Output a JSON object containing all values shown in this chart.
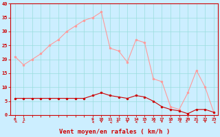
{
  "x_labels": [
    "0",
    "1",
    "",
    "",
    "",
    "",
    "",
    "",
    "",
    "9",
    "10",
    "11",
    "12",
    "13",
    "14",
    "15",
    "16",
    "17",
    "18",
    "19",
    "20",
    "21",
    "22",
    "23"
  ],
  "wind_mean": [
    6,
    6,
    6,
    6,
    6,
    6,
    6,
    6,
    6,
    7,
    8,
    7,
    6.5,
    6,
    7,
    6.5,
    5,
    3,
    2,
    1.5,
    0.5,
    2,
    2,
    1
  ],
  "wind_gust": [
    21,
    18,
    20,
    22,
    25,
    27,
    30,
    32,
    34,
    35,
    37,
    24,
    23,
    19,
    27,
    26,
    13,
    12,
    3,
    2,
    8,
    16,
    10,
    1
  ],
  "bg_color": "#cceeff",
  "grid_color": "#99dddd",
  "line_mean_color": "#cc0000",
  "line_gust_color": "#ff9999",
  "marker_color_mean": "#cc0000",
  "marker_color_gust": "#ff9999",
  "xlabel": "Vent moyen/en rafales ( km/h )",
  "xlabel_color": "#cc0000",
  "tick_color": "#cc0000",
  "ylim": [
    0,
    40
  ],
  "yticks": [
    0,
    5,
    10,
    15,
    20,
    25,
    30,
    35,
    40
  ],
  "arrow_dirs": [
    225,
    210,
    null,
    null,
    null,
    null,
    null,
    null,
    null,
    270,
    180,
    315,
    135,
    180,
    270,
    150,
    225,
    180,
    210,
    225,
    135,
    270,
    180,
    315
  ]
}
